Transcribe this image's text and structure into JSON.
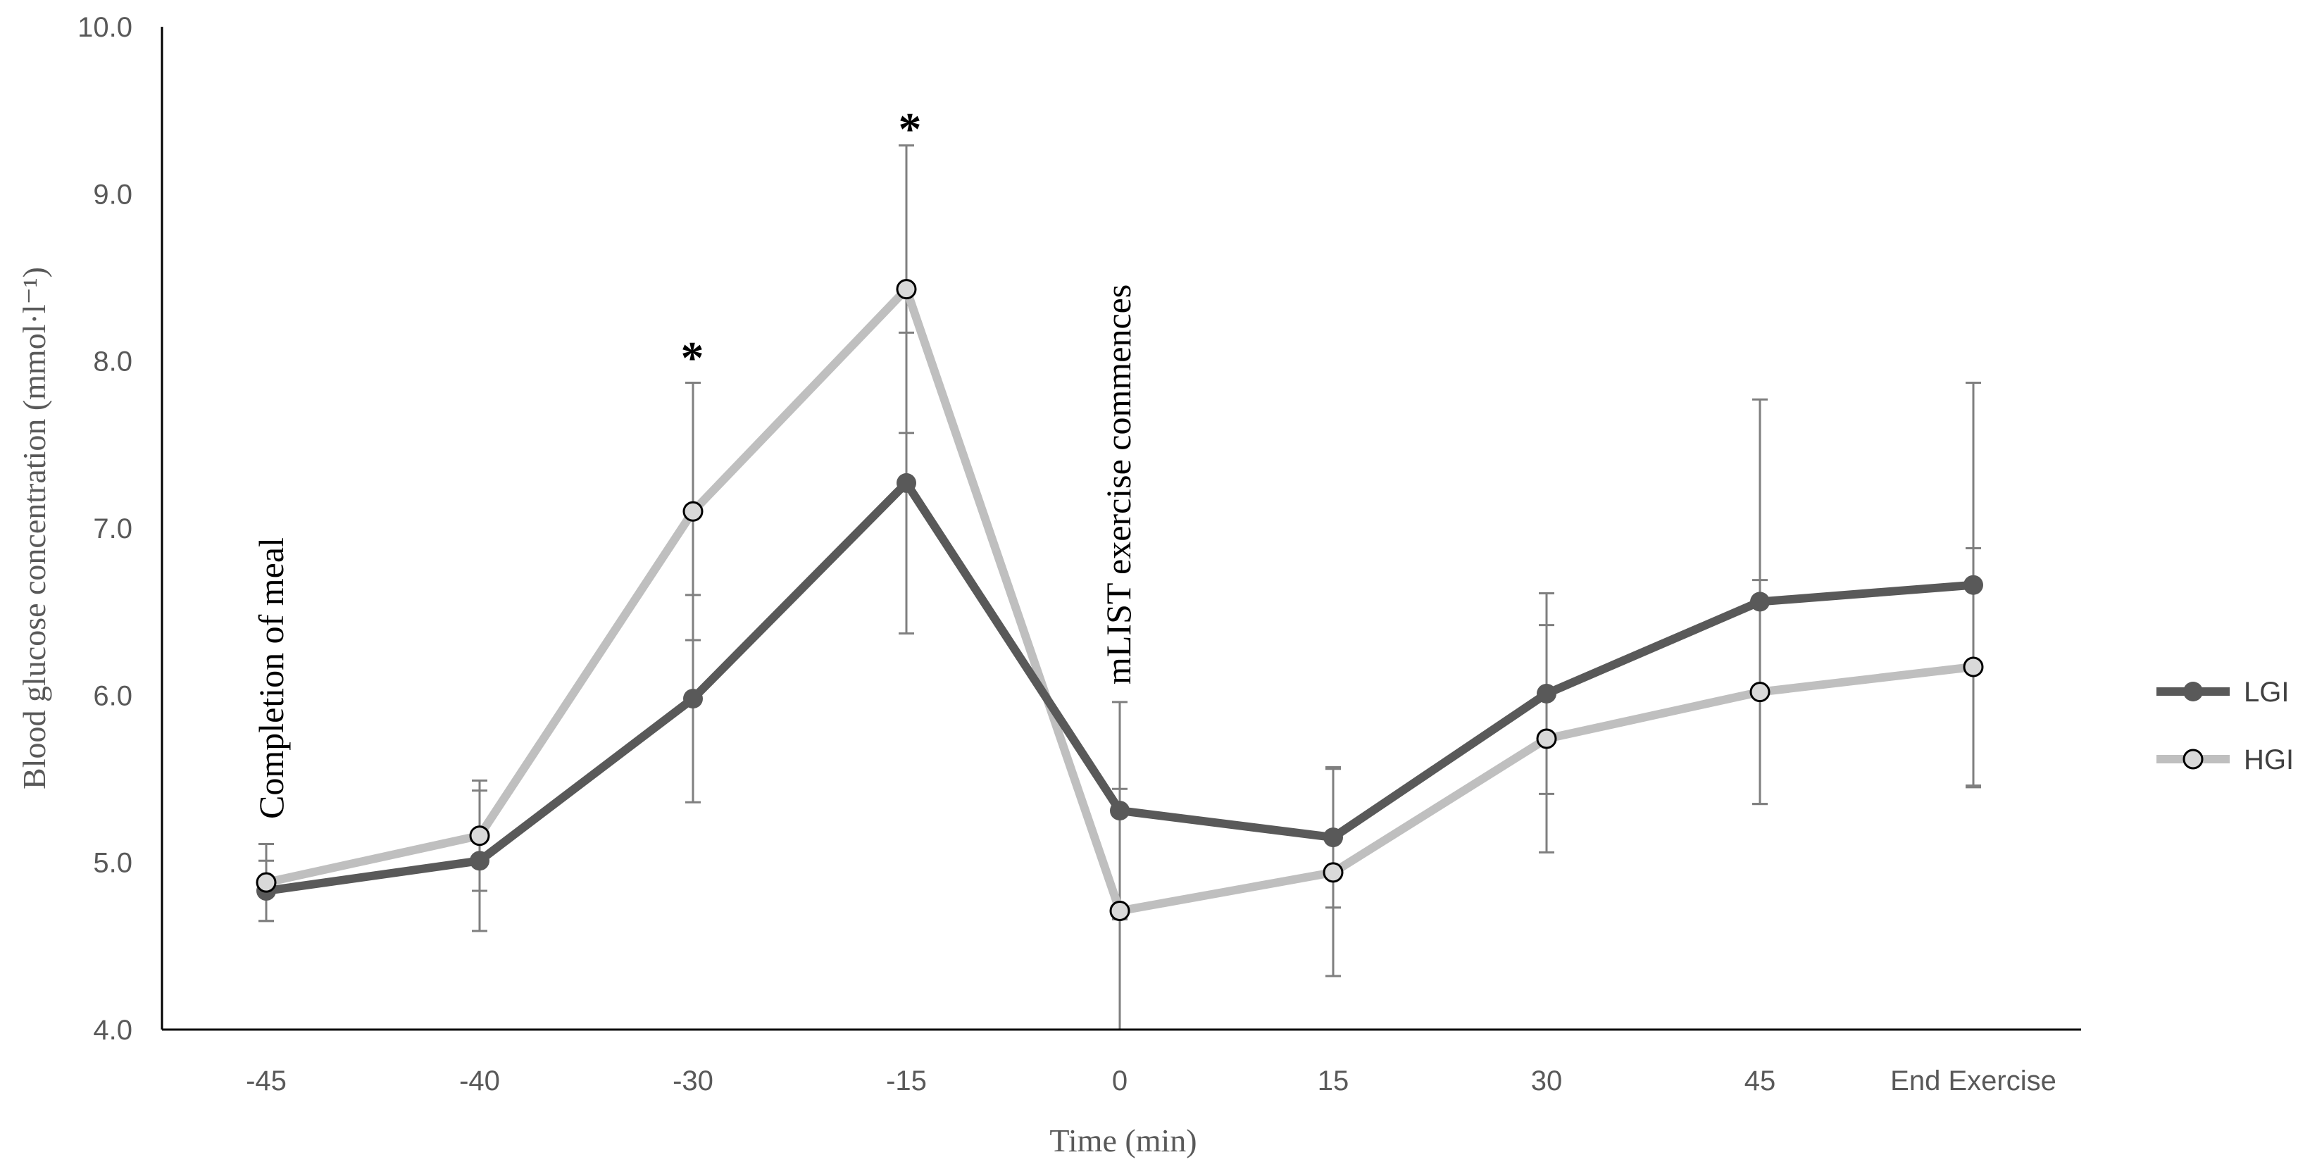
{
  "chart_data": {
    "type": "line",
    "title": "",
    "xlabel": "Time (min)",
    "ylabel": "Blood glucose concentration (mmol·l⁻¹)",
    "categories": [
      "-45",
      "-40",
      "-30",
      "-15",
      "0",
      "15",
      "30",
      "45",
      "End Exercise"
    ],
    "ylim": [
      4.0,
      10.0
    ],
    "yticks": [
      "4.0",
      "5.0",
      "6.0",
      "7.0",
      "8.0",
      "9.0",
      "10.0"
    ],
    "grid": false,
    "legend_position": "right",
    "series": [
      {
        "name": "LGI",
        "color": "#595959",
        "marker": "filled-circle",
        "values": [
          4.83,
          5.01,
          5.98,
          7.27,
          5.31,
          5.15,
          6.01,
          6.56,
          6.66
        ],
        "error": [
          0.18,
          0.42,
          0.62,
          0.9,
          0.65,
          0.42,
          0.6,
          1.21,
          1.21
        ]
      },
      {
        "name": "HGI",
        "color": "#bfbfbf",
        "marker": "open-circle",
        "values": [
          4.88,
          5.16,
          7.1,
          8.43,
          4.71,
          4.94,
          5.74,
          6.02,
          6.17
        ],
        "error": [
          0.23,
          0.33,
          0.77,
          0.86,
          0.73,
          0.62,
          0.68,
          0.67,
          0.71
        ]
      }
    ],
    "annotations": [
      {
        "text": "Completion of meal",
        "category": "-45"
      },
      {
        "text": "mLIST exercise commences",
        "category": "0"
      }
    ],
    "significance_markers": [
      {
        "text": "*",
        "category": "-30"
      },
      {
        "text": "*",
        "category": "-15"
      }
    ]
  }
}
